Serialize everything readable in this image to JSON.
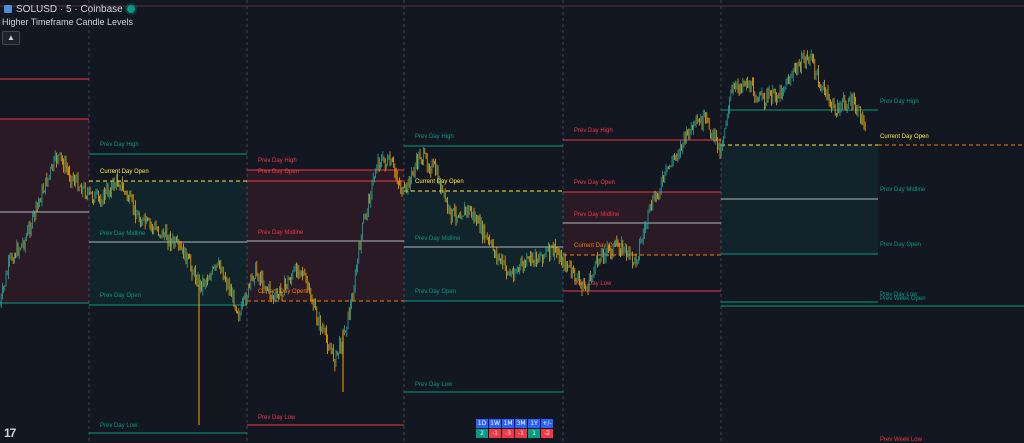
{
  "header": {
    "symbol": "SOLUSD · 5 · Coinbase",
    "indicator": "Higher Timeframe Candle Levels",
    "collapse_icon": "chevron-up-icon"
  },
  "logo": {
    "text": "17",
    "icon": "tradingview-logo"
  },
  "performance_table": {
    "headers": [
      "1D",
      "1W",
      "1M",
      "3M",
      "1Y",
      "+/-"
    ],
    "values": [
      "2",
      "-1",
      "-3",
      "-1",
      "1",
      "-2"
    ],
    "value_colors": [
      "#089981",
      "#f23645",
      "#f23645",
      "#f23645",
      "#089981",
      "#f23645"
    ]
  },
  "colors": {
    "background": "#131722",
    "bull": "#26a69a",
    "bear": "#f7a600",
    "level_green": "#089981",
    "level_red": "#f23645",
    "current_day": "#ffeb3b",
    "open_dashed": "#f57c00"
  },
  "chart_data": {
    "type": "candlestick-levels",
    "symbol": "SOLUSD",
    "timeframe": "5",
    "sessions": [
      {
        "prev_high": null,
        "prev_low": null
      },
      {
        "labels": {
          "high": "Prev Day High",
          "current_open": "Current Day Open",
          "midline": "Prev Day Midline",
          "open": "Prev Day Open",
          "low": "Prev Day Low"
        },
        "trend": "bull"
      },
      {
        "labels": {
          "high": "Prev Day High",
          "open": "Prev Day Open",
          "midline": "Prev Day Midline",
          "current_open": "Current Day Open",
          "low": "Prev Day Low"
        },
        "trend": "bear"
      },
      {
        "labels": {
          "high": "Prev Day High",
          "current_open": "Current Day Open",
          "midline": "Prev Day Midline",
          "open": "Prev Day Open",
          "low": "Prev Day Low"
        },
        "trend": "bull"
      },
      {
        "labels": {
          "high": "Prev Day High",
          "open": "Prev Day Open",
          "midline": "Prev Day Midline",
          "current_open": "Current Day Open",
          "low": "Prev Day Low"
        },
        "trend": "bear"
      },
      {
        "labels": {
          "high": "Prev Day High",
          "current_open": "Current Day Open",
          "midline": "Prev Day Midline",
          "open": "Prev Day Open",
          "low": "Prev Day Low",
          "low2": "Prev Day Low",
          "week_open": "Prev Week Open",
          "week_low": "Prev Week Low"
        },
        "trend": "bull"
      }
    ]
  }
}
